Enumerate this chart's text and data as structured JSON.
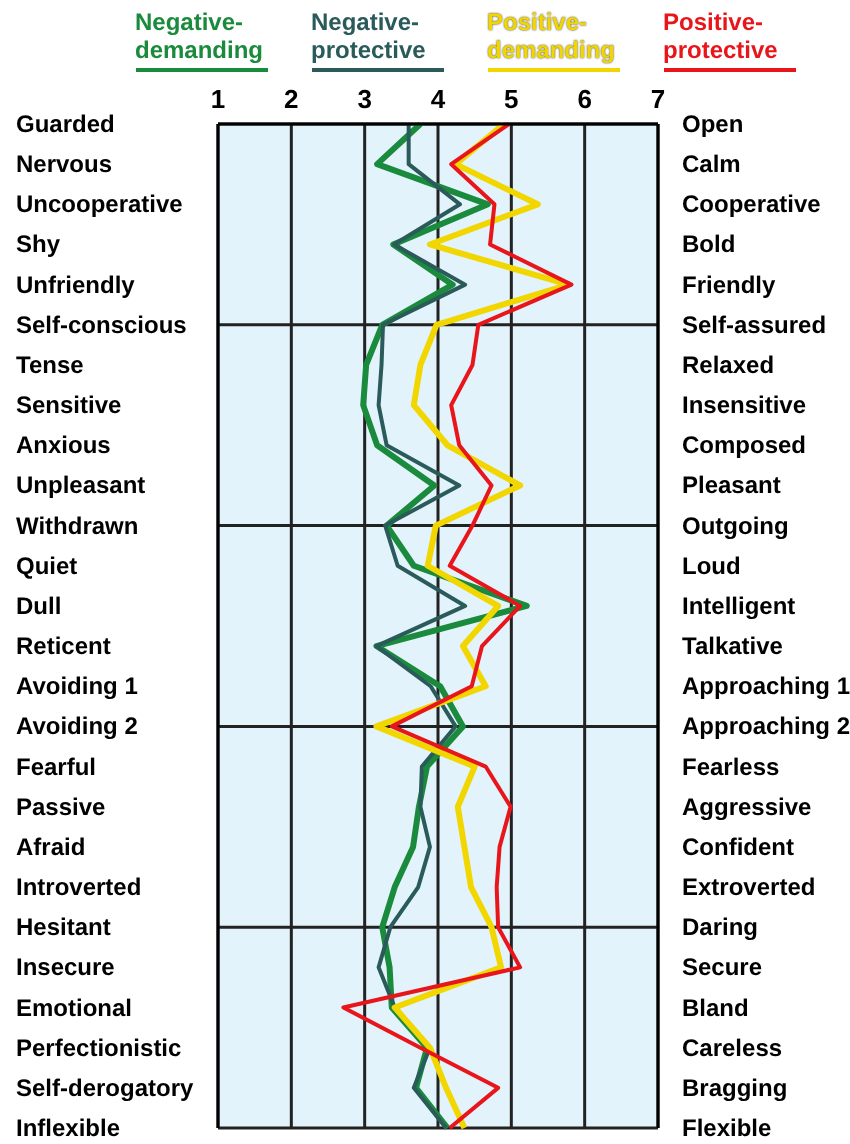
{
  "chart_data": {
    "type": "line",
    "orientation": "horizontal",
    "categories": [
      "Guarded",
      "Nervous",
      "Uncooperative",
      "Shy",
      "Unfriendly",
      "Self-conscious",
      "Tense",
      "Sensitive",
      "Anxious",
      "Unpleasant",
      "Withdrawn",
      "Quiet",
      "Dull",
      "Reticent",
      "Avoiding 1",
      "Avoiding 2",
      "Fearful",
      "Passive",
      "Afraid",
      "Introverted",
      "Hesitant",
      "Insecure",
      "Emotional",
      "Perfectionistic",
      "Self-derogatory",
      "Inflexible"
    ],
    "y2_categories": [
      "Open",
      "Calm",
      "Cooperative",
      "Bold",
      "Friendly",
      "Self-assured",
      "Relaxed",
      "Insensitive",
      "Composed",
      "Pleasant",
      "Outgoing",
      "Loud",
      "Intelligent",
      "Talkative",
      "Approaching 1",
      "Approaching 2",
      "Fearless",
      "Aggressive",
      "Confident",
      "Extroverted",
      "Daring",
      "Secure",
      "Bland",
      "Careless",
      "Bragging",
      "Flexible"
    ],
    "series": [
      {
        "name": "Negative-demanding",
        "color": "#1a8a3c",
        "values": [
          3.76,
          3.17,
          4.68,
          3.39,
          4.2,
          3.24,
          3.02,
          2.98,
          3.17,
          3.95,
          3.3,
          3.67,
          5.21,
          3.16,
          4.03,
          4.34,
          3.85,
          3.74,
          3.66,
          3.41,
          3.24,
          3.34,
          3.37,
          3.85,
          3.7,
          4.13
        ]
      },
      {
        "name": "Negative-protective",
        "color": "#2a5a5a",
        "values": [
          3.6,
          3.6,
          4.3,
          3.4,
          4.37,
          3.25,
          3.23,
          3.19,
          3.3,
          4.29,
          3.28,
          3.45,
          4.37,
          3.16,
          3.9,
          4.24,
          3.78,
          3.76,
          3.89,
          3.73,
          3.35,
          3.19,
          3.41,
          3.89,
          3.67,
          4.11
        ]
      },
      {
        "name": "Positive-demanding",
        "color": "#f2d600",
        "values": [
          4.9,
          4.24,
          5.36,
          3.89,
          5.78,
          3.98,
          3.76,
          3.67,
          4.13,
          5.12,
          3.97,
          3.86,
          4.82,
          4.34,
          4.65,
          3.16,
          4.5,
          4.27,
          4.36,
          4.45,
          4.73,
          4.86,
          3.41,
          3.89,
          4.11,
          4.36
        ]
      },
      {
        "name": "Positive-protective",
        "color": "#e8151b",
        "values": [
          4.97,
          4.18,
          4.77,
          4.71,
          5.82,
          4.55,
          4.47,
          4.18,
          4.29,
          4.73,
          4.47,
          4.16,
          5.12,
          4.6,
          4.46,
          3.37,
          4.65,
          4.99,
          4.84,
          4.8,
          4.82,
          5.12,
          2.71,
          3.76,
          4.82,
          4.16
        ]
      }
    ],
    "xlim": [
      1,
      7
    ],
    "xticks": [
      1,
      2,
      3,
      4,
      5,
      6,
      7
    ],
    "grid": true,
    "legend": "top"
  }
}
